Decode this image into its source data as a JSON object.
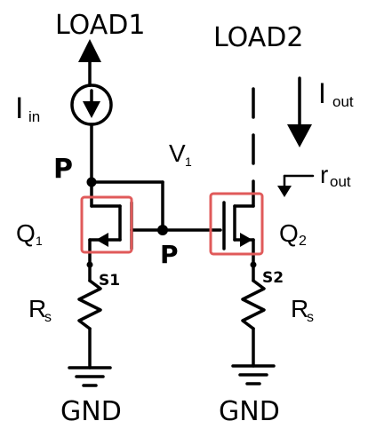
{
  "labels": {
    "load1": "LOAD1",
    "load2": "LOAD2",
    "iin_main": "I",
    "iin_sub": "in",
    "iout_main": "I",
    "iout_sub": "out",
    "v1_main": "V",
    "v1_sub": "1",
    "rout_main": "r",
    "rout_sub": "out",
    "p_top": "P",
    "p_gate": "P",
    "q1_main": "Q",
    "q1_sub": "1",
    "q2_main": "Q",
    "q2_sub": "2",
    "s1": "S1",
    "s2": "S2",
    "rs1_main": "R",
    "rs1_sub": "s",
    "rs2_main": "R",
    "rs2_sub": "s",
    "gnd1": "GND",
    "gnd2": "GND"
  },
  "colors": {
    "wire": "#000000",
    "highlight": "#e05a5a"
  }
}
